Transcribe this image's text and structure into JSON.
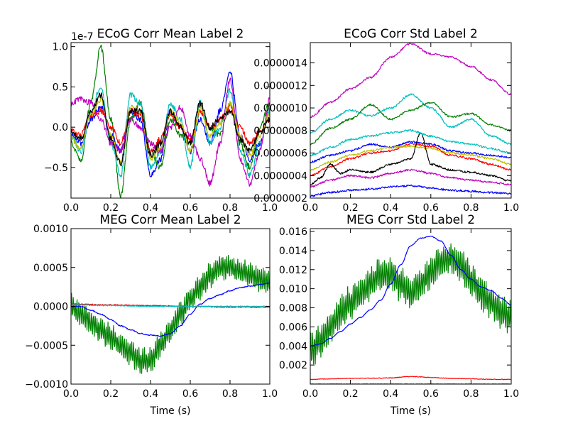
{
  "chart_data": [
    {
      "type": "line",
      "title": "ECoG Corr Mean Label 2",
      "xlabel": "",
      "ylabel": "",
      "offset_text": "1e-7",
      "xlim": [
        0.0,
        1.0
      ],
      "ylim": [
        -0.88,
        1.05
      ],
      "xticks": [
        0.0,
        0.2,
        0.4,
        0.6,
        0.8,
        1.0
      ],
      "xtick_labels": [
        "0.0",
        "0.2",
        "0.4",
        "0.6",
        "0.8",
        "1.0"
      ],
      "yticks": [
        -0.5,
        0.0,
        0.5,
        1.0
      ],
      "ytick_labels": [
        "−0.5",
        "0.0",
        "0.5",
        "1.0"
      ],
      "series": [
        {
          "color": "#0000ff",
          "x": [
            0,
            0.05,
            0.1,
            0.15,
            0.2,
            0.25,
            0.3,
            0.35,
            0.4,
            0.45,
            0.5,
            0.55,
            0.6,
            0.65,
            0.7,
            0.75,
            0.8,
            0.85,
            0.9,
            0.95,
            1.0
          ],
          "y": [
            -0.1,
            -0.2,
            0.1,
            0.25,
            -0.1,
            -0.3,
            0.2,
            0.1,
            -0.6,
            -0.4,
            0.2,
            0.0,
            -0.3,
            0.1,
            -0.2,
            0.2,
            0.7,
            -0.1,
            -0.4,
            -0.2,
            0.2
          ]
        },
        {
          "color": "#008000",
          "x": [
            0,
            0.05,
            0.1,
            0.15,
            0.2,
            0.25,
            0.3,
            0.35,
            0.4,
            0.45,
            0.5,
            0.55,
            0.6,
            0.65,
            0.7,
            0.75,
            0.8,
            0.85,
            0.9,
            0.95,
            1.0
          ],
          "y": [
            -0.2,
            -0.4,
            0.3,
            1.0,
            0.1,
            -0.85,
            0.1,
            0.3,
            -0.3,
            -0.5,
            0.1,
            -0.1,
            -0.2,
            0.2,
            0.0,
            -0.1,
            0.3,
            -0.2,
            -0.5,
            0.0,
            0.3
          ]
        },
        {
          "color": "#ff0000",
          "x": [
            0,
            0.05,
            0.1,
            0.15,
            0.2,
            0.25,
            0.3,
            0.35,
            0.4,
            0.45,
            0.5,
            0.55,
            0.6,
            0.65,
            0.7,
            0.75,
            0.8,
            0.85,
            0.9,
            0.95,
            1.0
          ],
          "y": [
            -0.05,
            -0.1,
            0.15,
            0.2,
            0.0,
            -0.2,
            0.2,
            0.15,
            -0.3,
            -0.15,
            0.15,
            0.0,
            -0.15,
            0.2,
            0.0,
            0.1,
            0.25,
            0.0,
            -0.2,
            -0.05,
            0.1
          ]
        },
        {
          "color": "#00bfbf",
          "x": [
            0,
            0.05,
            0.1,
            0.15,
            0.2,
            0.25,
            0.3,
            0.35,
            0.4,
            0.45,
            0.5,
            0.55,
            0.6,
            0.65,
            0.7,
            0.75,
            0.8,
            0.85,
            0.9,
            0.95,
            1.0
          ],
          "y": [
            -0.1,
            -0.3,
            0.2,
            0.5,
            -0.2,
            -0.6,
            0.4,
            0.3,
            -0.5,
            -0.3,
            0.3,
            0.1,
            -0.5,
            0.3,
            -0.2,
            0.0,
            0.45,
            -0.3,
            -0.6,
            -0.2,
            0.2
          ]
        },
        {
          "color": "#bf00bf",
          "x": [
            0,
            0.05,
            0.1,
            0.15,
            0.2,
            0.25,
            0.3,
            0.35,
            0.4,
            0.45,
            0.5,
            0.55,
            0.6,
            0.65,
            0.7,
            0.75,
            0.8,
            0.85,
            0.9,
            0.95,
            1.0
          ],
          "y": [
            0.3,
            0.35,
            0.3,
            0.1,
            -0.2,
            -0.3,
            0.1,
            0.0,
            -0.2,
            -0.3,
            0.0,
            0.25,
            -0.1,
            -0.4,
            -0.7,
            -0.2,
            0.6,
            -0.4,
            -0.7,
            -0.3,
            0.35
          ]
        },
        {
          "color": "#bfbf00",
          "x": [
            0,
            0.05,
            0.1,
            0.15,
            0.2,
            0.25,
            0.3,
            0.35,
            0.4,
            0.45,
            0.5,
            0.55,
            0.6,
            0.65,
            0.7,
            0.75,
            0.8,
            0.85,
            0.9,
            0.95,
            1.0
          ],
          "y": [
            -0.15,
            -0.25,
            0.15,
            0.35,
            -0.1,
            -0.45,
            0.25,
            0.2,
            -0.4,
            -0.25,
            0.2,
            0.05,
            -0.3,
            0.25,
            -0.1,
            0.05,
            0.3,
            -0.1,
            -0.35,
            -0.1,
            0.15
          ]
        },
        {
          "color": "#000000",
          "x": [
            0,
            0.05,
            0.1,
            0.15,
            0.2,
            0.25,
            0.3,
            0.35,
            0.4,
            0.45,
            0.5,
            0.55,
            0.6,
            0.65,
            0.7,
            0.75,
            0.8,
            0.85,
            0.9,
            0.95,
            1.0
          ],
          "y": [
            -0.05,
            -0.15,
            0.2,
            0.4,
            -0.15,
            -0.45,
            0.2,
            0.2,
            -0.35,
            -0.2,
            0.2,
            0.0,
            -0.2,
            0.3,
            0.0,
            0.1,
            0.2,
            -0.15,
            -0.3,
            -0.05,
            0.1
          ]
        }
      ]
    },
    {
      "type": "line",
      "title": "ECoG Corr Std Label 2",
      "xlabel": "",
      "ylabel": "",
      "xlim": [
        0.0,
        1.0
      ],
      "ylim": [
        2e-07,
        1.58e-06
      ],
      "xticks": [
        0.0,
        0.2,
        0.4,
        0.6,
        0.8,
        1.0
      ],
      "xtick_labels": [
        "0.0",
        "0.2",
        "0.4",
        "0.6",
        "0.8",
        "1.0"
      ],
      "yticks": [
        2e-07,
        4e-07,
        6e-07,
        8e-07,
        1e-06,
        1.2e-06,
        1.4e-06
      ],
      "ytick_labels": [
        "0.0000002",
        "0.0000004",
        "0.0000006",
        "0.0000008",
        "0.0000010",
        "0.0000012",
        "0.0000014"
      ],
      "series": [
        {
          "color": "#bf00bf",
          "x": [
            0,
            0.1,
            0.2,
            0.3,
            0.4,
            0.5,
            0.6,
            0.7,
            0.8,
            0.9,
            1.0
          ],
          "y": [
            9.2e-07,
            1.05e-06,
            1.17e-06,
            1.27e-06,
            1.45e-06,
            1.57e-06,
            1.48e-06,
            1.45e-06,
            1.37e-06,
            1.25e-06,
            1.12e-06
          ]
        },
        {
          "color": "#00bfbf",
          "x": [
            0,
            0.1,
            0.2,
            0.3,
            0.4,
            0.5,
            0.6,
            0.7,
            0.8,
            0.9,
            1.0
          ],
          "y": [
            7.8e-07,
            9e-07,
            9.8e-07,
            9.3e-07,
            1e-06,
            1.12e-06,
            1e-06,
            8.3e-07,
            9e-07,
            7.5e-07,
            6.8e-07
          ]
        },
        {
          "color": "#008000",
          "x": [
            0,
            0.1,
            0.2,
            0.3,
            0.4,
            0.5,
            0.6,
            0.7,
            0.8,
            0.9,
            1.0
          ],
          "y": [
            6.8e-07,
            8.2e-07,
            9e-07,
            1.03e-06,
            9e-07,
            9.8e-07,
            1.05e-06,
            9.2e-07,
            9.5e-07,
            8.5e-07,
            8e-07
          ]
        },
        {
          "color": "#0000ff",
          "x": [
            0,
            0.1,
            0.2,
            0.3,
            0.4,
            0.5,
            0.6,
            0.7,
            0.8,
            0.9,
            1.0
          ],
          "y": [
            5.2e-07,
            5.8e-07,
            6.2e-07,
            6.8e-07,
            6.5e-07,
            7e-07,
            6.8e-07,
            6.2e-07,
            6e-07,
            5.8e-07,
            5.6e-07
          ]
        },
        {
          "color": "#ff0000",
          "x": [
            0,
            0.1,
            0.2,
            0.3,
            0.4,
            0.5,
            0.6,
            0.7,
            0.8,
            0.9,
            1.0
          ],
          "y": [
            4e-07,
            4.8e-07,
            5.5e-07,
            6e-07,
            6.2e-07,
            6.8e-07,
            6.6e-07,
            5.8e-07,
            5.5e-07,
            5e-07,
            4.5e-07
          ]
        },
        {
          "color": "#bfbf00",
          "x": [
            0,
            0.1,
            0.2,
            0.3,
            0.4,
            0.5,
            0.6,
            0.7,
            0.8,
            0.9,
            1.0
          ],
          "y": [
            4.5e-07,
            5.2e-07,
            5.8e-07,
            6.2e-07,
            6.5e-07,
            6.6e-07,
            6.4e-07,
            6e-07,
            5.8e-07,
            5.5e-07,
            5e-07
          ]
        },
        {
          "color": "#000000",
          "x": [
            0,
            0.05,
            0.1,
            0.15,
            0.2,
            0.3,
            0.4,
            0.5,
            0.55,
            0.6,
            0.7,
            0.8,
            0.9,
            1.0
          ],
          "y": [
            3.2e-07,
            3.8e-07,
            5e-07,
            4.2e-07,
            4.5e-07,
            4.3e-07,
            5e-07,
            5.5e-07,
            7.8e-07,
            5e-07,
            4.5e-07,
            4.3e-07,
            4e-07,
            3.5e-07
          ]
        },
        {
          "color": "#bf00bf",
          "x": [
            0,
            0.1,
            0.2,
            0.3,
            0.4,
            0.5,
            0.6,
            0.7,
            0.8,
            0.9,
            1.0
          ],
          "y": [
            3e-07,
            3.6e-07,
            4e-07,
            3.8e-07,
            4.2e-07,
            4.5e-07,
            4.2e-07,
            3.8e-07,
            3.6e-07,
            3.4e-07,
            3.2e-07
          ]
        },
        {
          "color": "#0000ff",
          "x": [
            0,
            0.1,
            0.2,
            0.3,
            0.4,
            0.5,
            0.6,
            0.7,
            0.8,
            0.9,
            1.0
          ],
          "y": [
            2.2e-07,
            2.5e-07,
            2.7e-07,
            2.8e-07,
            3e-07,
            3.1e-07,
            2.9e-07,
            2.7e-07,
            2.6e-07,
            2.5e-07,
            2.4e-07
          ]
        },
        {
          "color": "#00bfbf",
          "x": [
            0,
            0.1,
            0.2,
            0.3,
            0.4,
            0.5,
            0.6,
            0.7,
            0.8,
            0.9,
            1.0
          ],
          "y": [
            5.8e-07,
            6.5e-07,
            7.2e-07,
            7.5e-07,
            7.8e-07,
            8e-07,
            7.5e-07,
            7e-07,
            6.8e-07,
            6.4e-07,
            6e-07
          ]
        }
      ]
    },
    {
      "type": "line",
      "title": "MEG Corr Mean Label 2",
      "xlabel": "Time (s)",
      "ylabel": "",
      "xlim": [
        0.0,
        1.0
      ],
      "ylim": [
        -0.001,
        0.001
      ],
      "xticks": [
        0.0,
        0.2,
        0.4,
        0.6,
        0.8,
        1.0
      ],
      "xtick_labels": [
        "0.0",
        "0.2",
        "0.4",
        "0.6",
        "0.8",
        "1.0"
      ],
      "yticks": [
        -0.001,
        -0.0005,
        0.0,
        0.0005,
        0.001
      ],
      "ytick_labels": [
        "−0.0010",
        "−0.0005",
        "0.0000",
        "0.0005",
        "0.0010"
      ],
      "series": [
        {
          "color": "#008000",
          "x": [
            0,
            0.05,
            0.1,
            0.15,
            0.2,
            0.25,
            0.3,
            0.35,
            0.4,
            0.45,
            0.5,
            0.55,
            0.6,
            0.65,
            0.7,
            0.75,
            0.8,
            0.85,
            0.9,
            0.95,
            1.0
          ],
          "y": [
            0.0,
            -0.0001,
            -0.0002,
            -0.0003,
            -0.0004,
            -0.0005,
            -0.0006,
            -0.0007,
            -0.0007,
            -0.0005,
            -0.0003,
            -0.0001,
            0.0001,
            0.00025,
            0.0004,
            0.0005,
            0.0005,
            0.00045,
            0.0004,
            0.00035,
            0.0003
          ]
        },
        {
          "color": "#0000ff",
          "x": [
            0,
            0.05,
            0.1,
            0.15,
            0.2,
            0.25,
            0.3,
            0.35,
            0.4,
            0.45,
            0.5,
            0.55,
            0.6,
            0.65,
            0.7,
            0.75,
            0.8,
            0.85,
            0.9,
            0.95,
            1.0
          ],
          "y": [
            0.0,
            0.0,
            -5e-05,
            -0.0001,
            -0.00017,
            -0.00025,
            -0.0003,
            -0.00035,
            -0.00037,
            -0.00038,
            -0.00035,
            -0.00025,
            -0.0001,
            3e-05,
            0.0001,
            0.00015,
            0.0002,
            0.00024,
            0.00026,
            0.00028,
            0.0003
          ]
        },
        {
          "color": "#ff0000",
          "x": [
            0,
            0.2,
            0.4,
            0.6,
            0.8,
            1.0
          ],
          "y": [
            3e-05,
            2e-05,
            1e-05,
            0.0,
            -1e-05,
            -1e-05
          ]
        },
        {
          "color": "#00bfbf",
          "x": [
            0,
            0.2,
            0.4,
            0.6,
            0.8,
            1.0
          ],
          "y": [
            2e-05,
            1e-05,
            0.0,
            0.0,
            0.0,
            0.0
          ]
        }
      ]
    },
    {
      "type": "line",
      "title": "MEG Corr Std Label 2",
      "xlabel": "Time (s)",
      "ylabel": "",
      "xlim": [
        0.0,
        1.0
      ],
      "ylim": [
        0.0,
        0.0163
      ],
      "xticks": [
        0.0,
        0.2,
        0.4,
        0.6,
        0.8,
        1.0
      ],
      "xtick_labels": [
        "0.0",
        "0.2",
        "0.4",
        "0.6",
        "0.8",
        "1.0"
      ],
      "yticks": [
        0.002,
        0.004,
        0.006,
        0.008,
        0.01,
        0.012,
        0.014,
        0.016
      ],
      "ytick_labels": [
        "0.002",
        "0.004",
        "0.006",
        "0.008",
        "0.010",
        "0.012",
        "0.014",
        "0.016"
      ],
      "series": [
        {
          "color": "#008000",
          "x": [
            0,
            0.05,
            0.1,
            0.15,
            0.2,
            0.25,
            0.3,
            0.35,
            0.4,
            0.45,
            0.5,
            0.55,
            0.6,
            0.65,
            0.7,
            0.75,
            0.8,
            0.85,
            0.9,
            0.95,
            1.0
          ],
          "y": [
            0.0035,
            0.0045,
            0.006,
            0.0075,
            0.0085,
            0.0095,
            0.0105,
            0.0115,
            0.0115,
            0.0105,
            0.0095,
            0.0105,
            0.0118,
            0.0128,
            0.0132,
            0.0125,
            0.011,
            0.0095,
            0.0085,
            0.0075,
            0.007
          ]
        },
        {
          "color": "#0000ff",
          "x": [
            0,
            0.05,
            0.1,
            0.15,
            0.2,
            0.25,
            0.3,
            0.35,
            0.4,
            0.45,
            0.5,
            0.55,
            0.6,
            0.65,
            0.7,
            0.75,
            0.8,
            0.85,
            0.9,
            0.95,
            1.0
          ],
          "y": [
            0.004,
            0.0042,
            0.0048,
            0.0055,
            0.0063,
            0.007,
            0.0078,
            0.0088,
            0.0105,
            0.0125,
            0.0145,
            0.0153,
            0.0155,
            0.015,
            0.0135,
            0.012,
            0.011,
            0.0102,
            0.0098,
            0.009,
            0.0083
          ]
        },
        {
          "color": "#ff0000",
          "x": [
            0,
            0.1,
            0.2,
            0.3,
            0.4,
            0.5,
            0.6,
            0.7,
            0.8,
            0.9,
            1.0
          ],
          "y": [
            0.0005,
            0.00055,
            0.0006,
            0.00062,
            0.00065,
            0.0008,
            0.0007,
            0.0006,
            0.00055,
            0.0005,
            0.0005
          ]
        },
        {
          "color": "#00bfbf",
          "x": [
            0,
            0.2,
            0.4,
            0.6,
            0.8,
            1.0
          ],
          "y": [
            2e-05,
            2e-05,
            2e-05,
            2e-05,
            2e-05,
            2e-05
          ]
        }
      ]
    }
  ]
}
